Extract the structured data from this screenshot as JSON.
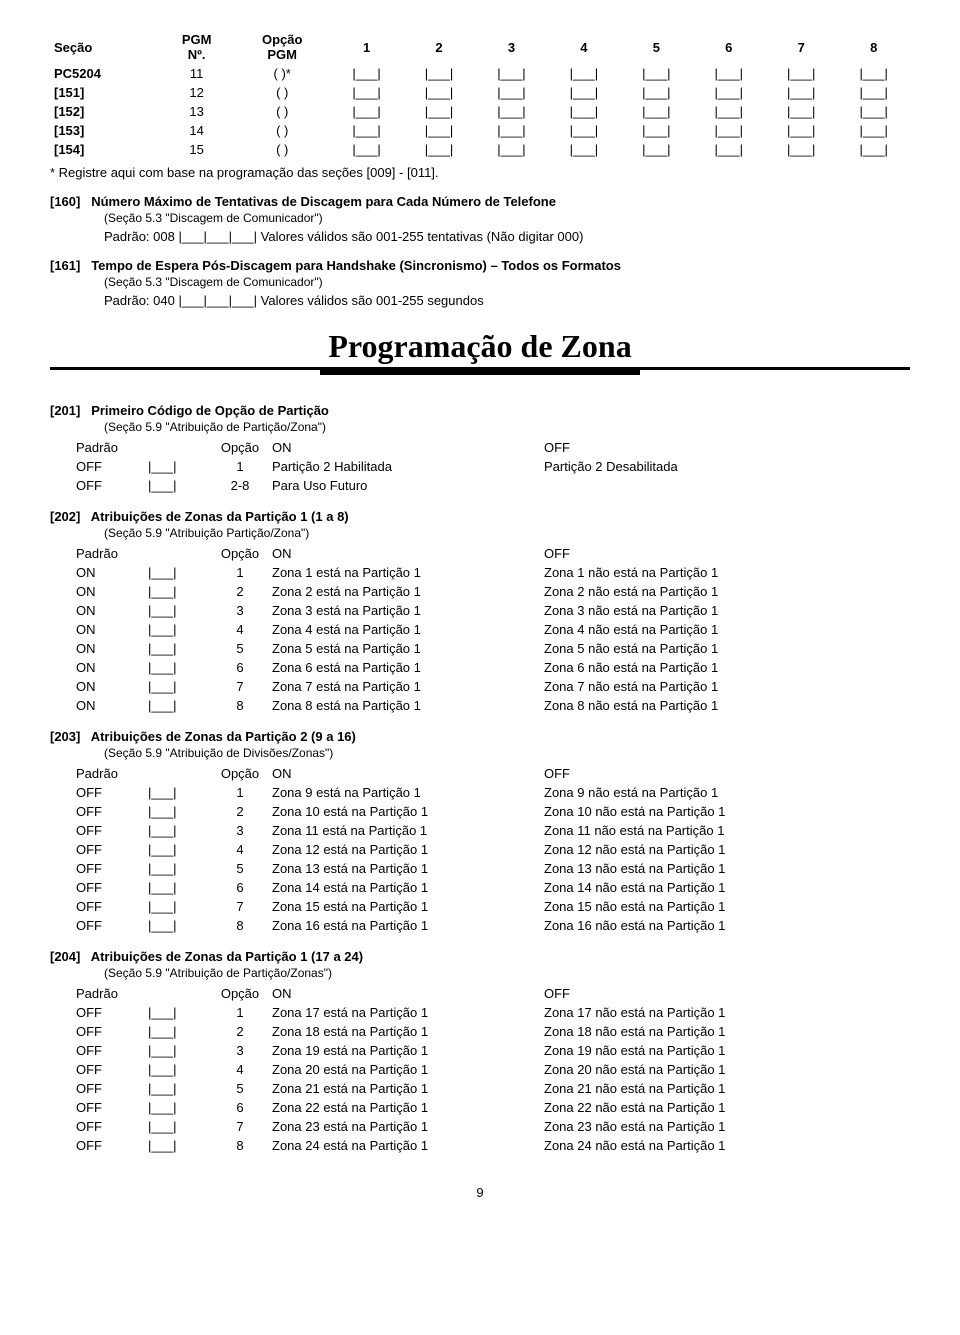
{
  "top_table": {
    "headers": [
      "Seção",
      "PGM\nNº.",
      "Opção\nPGM",
      "1",
      "2",
      "3",
      "4",
      "5",
      "6",
      "7",
      "8"
    ],
    "rows": [
      {
        "sec": "PC5204",
        "pgm": "11",
        "opt": "(     )*"
      },
      {
        "sec": "[151]",
        "pgm": "12",
        "opt": "(     )"
      },
      {
        "sec": "[152]",
        "pgm": "13",
        "opt": "(     )"
      },
      {
        "sec": "[153]",
        "pgm": "14",
        "opt": "(     )"
      },
      {
        "sec": "[154]",
        "pgm": "15",
        "opt": "(     )"
      }
    ],
    "entry_cell": "|___|"
  },
  "note_registre": "* Registre aqui com base na programação das seções [009] - [011].",
  "s160": {
    "code": "[160]",
    "title": "Número Máximo de Tentativas de Discagem para Cada Número de Telefone",
    "sub": "(Seção 5.3 \"Discagem de Comunicador\")",
    "padrao": "Padrão: 008  |___|___|___|  Valores válidos são 001-255 tentativas (Não digitar 000)"
  },
  "s161": {
    "code": "[161]",
    "title": "Tempo de Espera Pós-Discagem para Handshake (Sincronismo) – Todos os Formatos",
    "sub": "(Seção 5.3 \"Discagem de Comunicador\")",
    "padrao": "Padrão: 040  |___|___|___|  Valores válidos são 001-255 segundos"
  },
  "main_heading": "Programação de Zona",
  "s201": {
    "code": "[201]",
    "title": "Primeiro Código de Opção de Partição",
    "sub": "(Seção 5.9 \"Atribuição de Partição/Zona\")",
    "hdr": {
      "padrao": "Padrão",
      "opcao": "Opção",
      "on": "ON",
      "off": "OFF"
    },
    "rows": [
      {
        "d": "OFF",
        "o": "1",
        "on": "Partição 2 Habilitada",
        "off": "Partição 2 Desabilitada"
      },
      {
        "d": "OFF",
        "o": "2-8",
        "on": "Para Uso Futuro",
        "off": ""
      }
    ]
  },
  "s202": {
    "code": "[202]",
    "title": "Atribuições de Zonas da Partição 1 (1 a 8)",
    "sub": "(Seção 5.9 \"Atribuição Partição/Zona\")",
    "hdr": {
      "padrao": "Padrão",
      "opcao": "Opção",
      "on": "ON",
      "off": "OFF"
    },
    "rows": [
      {
        "d": "ON",
        "o": "1",
        "on": "Zona 1 está na Partição 1",
        "off": "Zona 1 não está na Partição 1"
      },
      {
        "d": "ON",
        "o": "2",
        "on": "Zona 2 está na Partição 1",
        "off": "Zona 2 não está na Partição 1"
      },
      {
        "d": "ON",
        "o": "3",
        "on": "Zona 3 está na Partição 1",
        "off": "Zona 3 não está na Partição 1"
      },
      {
        "d": "ON",
        "o": "4",
        "on": "Zona 4 está na Partição 1",
        "off": "Zona 4 não está na Partição 1"
      },
      {
        "d": "ON",
        "o": "5",
        "on": "Zona 5 está na Partição 1",
        "off": "Zona 5 não está na Partição 1"
      },
      {
        "d": "ON",
        "o": "6",
        "on": "Zona 6 está na Partição 1",
        "off": "Zona 6 não está na Partição 1"
      },
      {
        "d": "ON",
        "o": "7",
        "on": "Zona 7 está na Partição 1",
        "off": "Zona 7 não está na Partição 1"
      },
      {
        "d": "ON",
        "o": "8",
        "on": "Zona 8 está na Partição 1",
        "off": "Zona 8 não está na Partição 1"
      }
    ]
  },
  "s203": {
    "code": "[203]",
    "title": "Atribuições de Zonas da Partição 2 (9 a 16)",
    "sub": "(Seção 5.9 \"Atribuição de Divisões/Zonas\")",
    "hdr": {
      "padrao": "Padrão",
      "opcao": "Opção",
      "on": "ON",
      "off": "OFF"
    },
    "rows": [
      {
        "d": "OFF",
        "o": "1",
        "on": "Zona 9 está na Partição 1",
        "off": "Zona 9 não está na Partição 1"
      },
      {
        "d": "OFF",
        "o": "2",
        "on": "Zona 10 está na Partição 1",
        "off": "Zona 10 não está na Partição 1"
      },
      {
        "d": "OFF",
        "o": "3",
        "on": "Zona 11 está na Partição 1",
        "off": "Zona 11 não está na Partição 1"
      },
      {
        "d": "OFF",
        "o": "4",
        "on": "Zona 12 está na Partição 1",
        "off": "Zona 12 não está na Partição 1"
      },
      {
        "d": "OFF",
        "o": "5",
        "on": "Zona 13 está na Partição 1",
        "off": "Zona 13 não está na Partição 1"
      },
      {
        "d": "OFF",
        "o": "6",
        "on": "Zona 14 está na Partição 1",
        "off": "Zona 14 não está na Partição 1"
      },
      {
        "d": "OFF",
        "o": "7",
        "on": "Zona 15 está na Partição 1",
        "off": "Zona 15 não está na Partição 1"
      },
      {
        "d": "OFF",
        "o": "8",
        "on": "Zona 16 está na Partição 1",
        "off": "Zona 16 não está na Partição 1"
      }
    ]
  },
  "s204": {
    "code": "[204]",
    "title": "Atribuições de Zonas da Partição 1 (17 a 24)",
    "sub": "(Seção 5.9 \"Atribuição de Partição/Zonas\")",
    "hdr": {
      "padrao": "Padrão",
      "opcao": "Opção",
      "on": "ON",
      "off": "OFF"
    },
    "rows": [
      {
        "d": "OFF",
        "o": "1",
        "on": "Zona 17 está na Partição 1",
        "off": "Zona 17 não está na Partição 1"
      },
      {
        "d": "OFF",
        "o": "2",
        "on": "Zona 18 está na Partição 1",
        "off": "Zona 18 não está na Partição 1"
      },
      {
        "d": "OFF",
        "o": "3",
        "on": "Zona 19 está na Partição 1",
        "off": "Zona 19 não está na Partição 1"
      },
      {
        "d": "OFF",
        "o": "4",
        "on": "Zona 20 está na Partição 1",
        "off": "Zona 20 não está na Partição 1"
      },
      {
        "d": "OFF",
        "o": "5",
        "on": "Zona 21 está na Partição 1",
        "off": "Zona 21 não está na Partição 1"
      },
      {
        "d": "OFF",
        "o": "6",
        "on": "Zona 22 está na Partição 1",
        "off": "Zona 22 não está na Partição 1"
      },
      {
        "d": "OFF",
        "o": "7",
        "on": "Zona 23 está na Partição 1",
        "off": "Zona 23 não está na Partição 1"
      },
      {
        "d": "OFF",
        "o": "8",
        "on": "Zona 24 está na Partição 1",
        "off": "Zona 24 não está na Partição 1"
      }
    ]
  },
  "entry_box": "|___|",
  "page_number": "9"
}
